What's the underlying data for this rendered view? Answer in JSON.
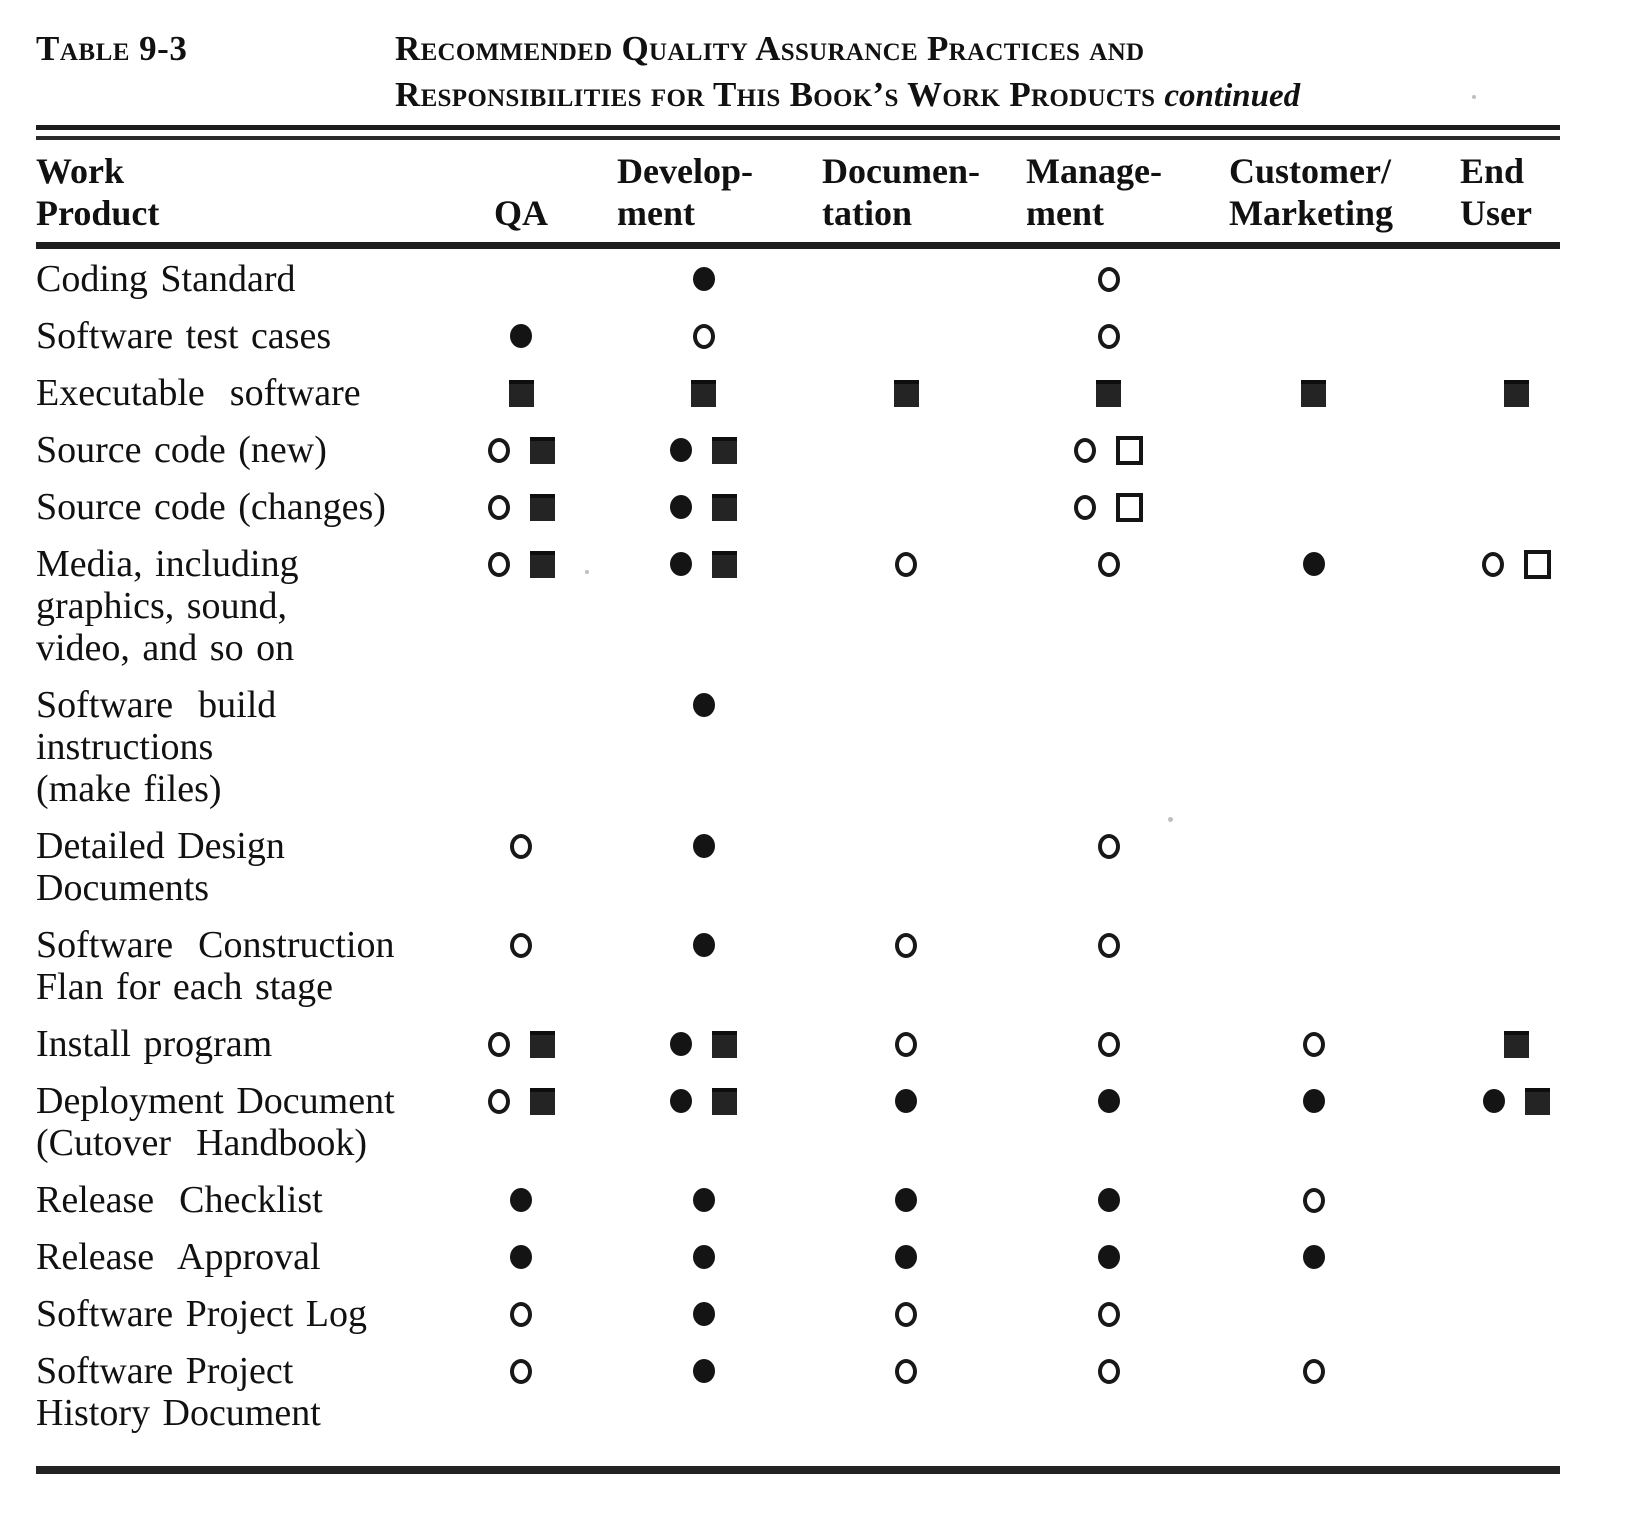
{
  "caption": {
    "table_number": "Table 9-3",
    "title_line1": "Recommended Quality Assurance Practices and",
    "title_line2": "Responsibilities for This Book’s Work Products",
    "continued_label": "continued"
  },
  "symbol_key": {
    "fc": "filled-circle",
    "oc": "open-circle",
    "fs": "filled-square",
    "os": "open-square"
  },
  "table": {
    "columns": [
      {
        "id": "work_product",
        "line1": "Work",
        "line2": "Product"
      },
      {
        "id": "qa",
        "line1": "",
        "line2": "QA"
      },
      {
        "id": "development",
        "line1": "Develop-",
        "line2": "ment"
      },
      {
        "id": "documentation",
        "line1": "Documen-",
        "line2": "tation"
      },
      {
        "id": "management",
        "line1": "Manage-",
        "line2": "ment"
      },
      {
        "id": "customer_marketing",
        "line1": "Customer/",
        "line2": "Marketing"
      },
      {
        "id": "end_user",
        "line1": "End",
        "line2": "User"
      }
    ],
    "rows": [
      {
        "label_lines": [
          "Coding Standard"
        ],
        "cells": {
          "qa": [],
          "development": [
            "fc"
          ],
          "documentation": [],
          "management": [
            "oc"
          ],
          "customer_marketing": [],
          "end_user": []
        }
      },
      {
        "label_lines": [
          "Software test cases"
        ],
        "cells": {
          "qa": [
            "fc"
          ],
          "development": [
            "oc"
          ],
          "documentation": [],
          "management": [
            "oc"
          ],
          "customer_marketing": [],
          "end_user": []
        }
      },
      {
        "label_lines": [
          "Executable  software"
        ],
        "cells": {
          "qa": [
            "fs"
          ],
          "development": [
            "fs"
          ],
          "documentation": [
            "fs"
          ],
          "management": [
            "fs"
          ],
          "customer_marketing": [
            "fs"
          ],
          "end_user": [
            "fs"
          ]
        }
      },
      {
        "label_lines": [
          "Source code (new)"
        ],
        "cells": {
          "qa": [
            "oc",
            "fs"
          ],
          "development": [
            "fc",
            "fs"
          ],
          "documentation": [],
          "management": [
            "oc",
            "os"
          ],
          "customer_marketing": [],
          "end_user": []
        }
      },
      {
        "label_lines": [
          "Source code (changes)"
        ],
        "cells": {
          "qa": [
            "oc",
            "fs"
          ],
          "development": [
            "fc",
            "fs"
          ],
          "documentation": [],
          "management": [
            "oc",
            "os"
          ],
          "customer_marketing": [],
          "end_user": []
        }
      },
      {
        "label_lines": [
          "Media, including",
          "graphics, sound,",
          "video, and so on"
        ],
        "cells": {
          "qa": [
            "oc",
            "fs"
          ],
          "development": [
            "fc",
            "fs"
          ],
          "documentation": [
            "oc"
          ],
          "management": [
            "oc"
          ],
          "customer_marketing": [
            "fc"
          ],
          "end_user": [
            "oc",
            "os"
          ]
        }
      },
      {
        "label_lines": [
          "Software  build",
          "instructions",
          "(make files)"
        ],
        "cells": {
          "qa": [],
          "development": [
            "fc"
          ],
          "documentation": [],
          "management": [],
          "customer_marketing": [],
          "end_user": []
        }
      },
      {
        "label_lines": [
          "Detailed Design",
          "Documents"
        ],
        "cells": {
          "qa": [
            "oc"
          ],
          "development": [
            "fc"
          ],
          "documentation": [],
          "management": [
            "oc"
          ],
          "customer_marketing": [],
          "end_user": []
        }
      },
      {
        "label_lines": [
          "Software  Construction",
          "Flan for each stage"
        ],
        "cells": {
          "qa": [
            "oc"
          ],
          "development": [
            "fc"
          ],
          "documentation": [
            "oc"
          ],
          "management": [
            "oc"
          ],
          "customer_marketing": [],
          "end_user": []
        }
      },
      {
        "label_lines": [
          "Install program"
        ],
        "cells": {
          "qa": [
            "oc",
            "fs"
          ],
          "development": [
            "fc",
            "fs"
          ],
          "documentation": [
            "oc"
          ],
          "management": [
            "oc"
          ],
          "customer_marketing": [
            "oc"
          ],
          "end_user": [
            "fs"
          ]
        }
      },
      {
        "label_lines": [
          "Deployment Document",
          "(Cutover  Handbook)"
        ],
        "cells": {
          "qa": [
            "oc",
            "fs"
          ],
          "development": [
            "fc",
            "fs"
          ],
          "documentation": [
            "fc"
          ],
          "management": [
            "fc"
          ],
          "customer_marketing": [
            "fc"
          ],
          "end_user": [
            "fc",
            "fs"
          ]
        }
      },
      {
        "label_lines": [
          "Release  Checklist"
        ],
        "cells": {
          "qa": [
            "fc"
          ],
          "development": [
            "fc"
          ],
          "documentation": [
            "fc"
          ],
          "management": [
            "fc"
          ],
          "customer_marketing": [
            "oc"
          ],
          "end_user": []
        }
      },
      {
        "label_lines": [
          "Release  Approval"
        ],
        "cells": {
          "qa": [
            "fc"
          ],
          "development": [
            "fc"
          ],
          "documentation": [
            "fc"
          ],
          "management": [
            "fc"
          ],
          "customer_marketing": [
            "fc"
          ],
          "end_user": []
        }
      },
      {
        "label_lines": [
          "Software Project Log"
        ],
        "cells": {
          "qa": [
            "oc"
          ],
          "development": [
            "fc"
          ],
          "documentation": [
            "oc"
          ],
          "management": [
            "oc"
          ],
          "customer_marketing": [],
          "end_user": []
        }
      },
      {
        "label_lines": [
          "Software Project",
          "History Document"
        ],
        "cells": {
          "qa": [
            "oc"
          ],
          "development": [
            "fc"
          ],
          "documentation": [
            "oc"
          ],
          "management": [
            "oc"
          ],
          "customer_marketing": [
            "oc"
          ],
          "end_user": []
        }
      }
    ]
  },
  "colors": {
    "ink": "#111111",
    "paper": "#ffffff"
  }
}
